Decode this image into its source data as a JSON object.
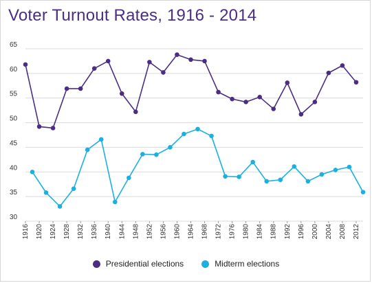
{
  "title": "Voter Turnout Rates, 1916 - 2014",
  "colors": {
    "presidential": "#4b2e83",
    "midterm": "#1ab0e0",
    "grid": "#d9d9d9"
  },
  "chart_data": {
    "type": "line",
    "title": "Voter Turnout Rates, 1916 - 2014",
    "xlabel": "",
    "ylabel": "",
    "ylim": [
      30,
      65
    ],
    "yticks": [
      30,
      35,
      40,
      45,
      50,
      55,
      60,
      65
    ],
    "xlim": [
      1916,
      2014
    ],
    "xticks": [
      1916,
      1920,
      1924,
      1928,
      1932,
      1936,
      1940,
      1944,
      1948,
      1952,
      1956,
      1960,
      1964,
      1968,
      1972,
      1976,
      1980,
      1984,
      1988,
      1992,
      1996,
      2000,
      2004,
      2008,
      2012
    ],
    "grid": true,
    "legend_position": "bottom",
    "series": [
      {
        "name": "Presidential elections",
        "x": [
          1916,
          1920,
          1924,
          1928,
          1932,
          1936,
          1940,
          1944,
          1948,
          1952,
          1956,
          1960,
          1964,
          1968,
          1972,
          1976,
          1980,
          1984,
          1988,
          1992,
          1996,
          2000,
          2004,
          2008,
          2012
        ],
        "values": [
          61.8,
          49.2,
          48.9,
          56.9,
          56.9,
          61.0,
          62.5,
          55.9,
          52.2,
          62.3,
          60.2,
          63.8,
          62.8,
          62.5,
          56.2,
          54.8,
          54.2,
          55.2,
          52.8,
          58.1,
          51.7,
          54.2,
          60.1,
          61.6,
          58.2
        ]
      },
      {
        "name": "Midterm elections",
        "x": [
          1918,
          1922,
          1926,
          1930,
          1934,
          1938,
          1942,
          1946,
          1950,
          1954,
          1958,
          1962,
          1966,
          1970,
          1974,
          1978,
          1982,
          1986,
          1990,
          1994,
          1998,
          2002,
          2006,
          2010,
          2014
        ],
        "values": [
          40.0,
          35.8,
          33.0,
          36.6,
          44.5,
          46.6,
          33.9,
          38.8,
          43.6,
          43.5,
          45.0,
          47.7,
          48.7,
          47.3,
          39.1,
          39.0,
          42.0,
          38.1,
          38.4,
          41.1,
          38.1,
          39.5,
          40.4,
          41.0,
          35.9
        ]
      }
    ]
  }
}
